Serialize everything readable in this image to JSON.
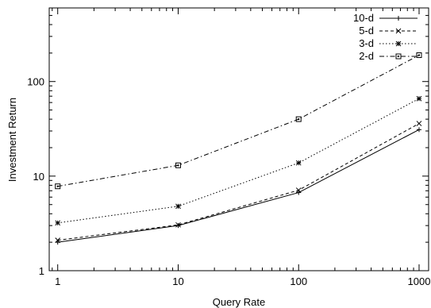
{
  "chart_data": {
    "type": "line",
    "xlabel": "Query Rate",
    "ylabel": "Investment Return",
    "xscale": "log",
    "yscale": "log",
    "xlim": [
      0.85,
      1200
    ],
    "ylim": [
      1,
      600
    ],
    "x_ticks": [
      1,
      10,
      100,
      1000
    ],
    "x_tick_labels": [
      "1",
      "10",
      "100",
      "1000"
    ],
    "y_ticks": [
      1,
      10,
      100
    ],
    "y_tick_labels": [
      "1",
      "10",
      "100"
    ],
    "grid": false,
    "legend_position": "top-right",
    "x": [
      1,
      10,
      100,
      1000
    ],
    "series": [
      {
        "name": "10-d",
        "values": [
          2.0,
          3.0,
          6.7,
          31
        ],
        "marker": "plus",
        "dash": "solid"
      },
      {
        "name": "5-d",
        "values": [
          2.1,
          3.05,
          7.1,
          36
        ],
        "marker": "cross",
        "dash": "dashed"
      },
      {
        "name": "3-d",
        "values": [
          3.2,
          4.8,
          13.8,
          66
        ],
        "marker": "star",
        "dash": "dotted"
      },
      {
        "name": "2-d",
        "values": [
          7.8,
          13,
          40,
          190
        ],
        "marker": "square",
        "dash": "dashdot"
      }
    ]
  }
}
